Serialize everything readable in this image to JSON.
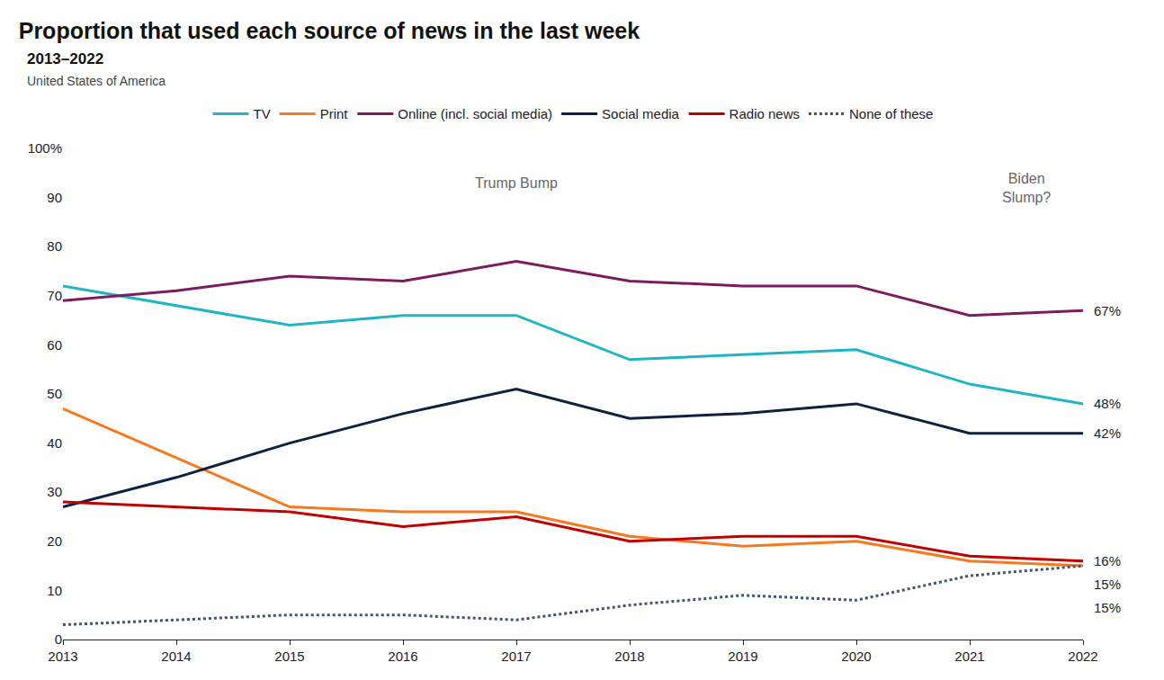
{
  "chart_data": {
    "type": "line",
    "title": "Proportion that used each source of news in the last week",
    "subtitle": "2013–2022",
    "caption": "United States of America",
    "x": [
      2013,
      2014,
      2015,
      2016,
      2017,
      2018,
      2019,
      2020,
      2021,
      2022
    ],
    "xlim": [
      2013,
      2022
    ],
    "xticks": [
      2013,
      2014,
      2015,
      2016,
      2017,
      2018,
      2019,
      2020,
      2021,
      2022
    ],
    "ylim": [
      0,
      100
    ],
    "yticks": [
      0,
      10,
      20,
      30,
      40,
      50,
      60,
      70,
      80,
      90,
      {
        "value": 100,
        "label": "100%"
      }
    ],
    "grid": false,
    "legend": "top",
    "series": [
      {
        "name": "TV",
        "color": "#1fb5c4",
        "line_style": "solid",
        "values": [
          72,
          68,
          64,
          66,
          66,
          57,
          58,
          59,
          52,
          48
        ],
        "value_labels": [
          null,
          null,
          null,
          null,
          null,
          null,
          null,
          null,
          null,
          "48%"
        ]
      },
      {
        "name": "Print",
        "color": "#f5791f",
        "line_style": "solid",
        "values": [
          47,
          37,
          27,
          26,
          26,
          21,
          19,
          20,
          16,
          15
        ],
        "value_labels": [
          null,
          null,
          null,
          null,
          null,
          null,
          null,
          null,
          null,
          "15%"
        ]
      },
      {
        "name": "Online (incl. social media)",
        "color": "#7b1c5e",
        "line_style": "solid",
        "values": [
          69,
          71,
          74,
          73,
          77,
          73,
          72,
          72,
          66,
          67
        ],
        "value_labels": [
          null,
          null,
          null,
          null,
          null,
          null,
          null,
          null,
          null,
          "67%"
        ]
      },
      {
        "name": "Social media",
        "color": "#0d2240",
        "line_style": "solid",
        "values": [
          27,
          33,
          40,
          46,
          51,
          45,
          46,
          48,
          42,
          42
        ],
        "value_labels": [
          null,
          null,
          null,
          null,
          null,
          null,
          null,
          null,
          null,
          "42%"
        ]
      },
      {
        "name": "Radio news",
        "color": "#c00000",
        "line_style": "solid",
        "values": [
          28,
          27,
          26,
          23,
          25,
          20,
          21,
          21,
          17,
          16
        ],
        "value_labels": [
          null,
          null,
          null,
          null,
          null,
          null,
          null,
          null,
          null,
          "16%"
        ]
      },
      {
        "name": "None of these",
        "color": "#44546a",
        "line_style": "dotted",
        "values": [
          3,
          4,
          5,
          5,
          4,
          7,
          9,
          8,
          13,
          15
        ],
        "value_labels": [
          null,
          null,
          null,
          null,
          null,
          null,
          null,
          null,
          null,
          "15%"
        ]
      }
    ],
    "annotations": [
      {
        "text": "Trump Bump",
        "x": 2017,
        "y": 93
      },
      {
        "text": "Biden\nSlump?",
        "x": 2021.5,
        "y": 92
      }
    ]
  }
}
